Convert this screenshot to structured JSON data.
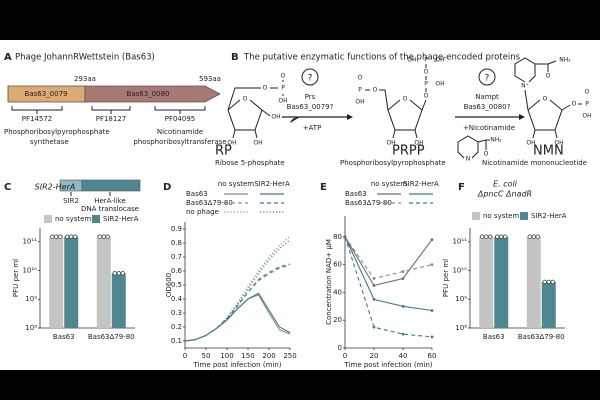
{
  "panel_labels": [
    "A",
    "B",
    "C",
    "D",
    "E",
    "F"
  ],
  "panel_a": {
    "title": "Phage JohannRWettstein (Bas63)",
    "genes": [
      "Bas63_0079",
      "Bas63_0080"
    ],
    "lengths": [
      "293aa",
      "593aa"
    ],
    "domains": [
      "PF14572",
      "PF18127",
      "PF04095"
    ],
    "annotations": [
      [
        "Phosphoribosylpyrophosphate",
        "synthetase"
      ],
      [
        "Nicotinamide",
        "phosphoribosyltransferase"
      ]
    ]
  },
  "panel_b": {
    "title": "The putative enzymatic functions of the phage-encoded proteins",
    "steps": [
      {
        "question": "?",
        "enzyme": "Prs",
        "candidate": "Bas63_0079?",
        "cosubstrate": "+ATP"
      },
      {
        "question": "?",
        "enzyme": "Nampt",
        "candidate": "Bas63_0080?",
        "cosubstrate": "+Nicotinamide"
      }
    ],
    "molecules": [
      {
        "abbr": "RP",
        "name": "Ribose 5-phosphate",
        "atoms": [
          "O",
          "OH",
          "OH",
          "OH",
          "O",
          "P",
          "O",
          "OH"
        ]
      },
      {
        "abbr": "PRPP",
        "name": "Phosphoribosylpyrophosphate",
        "atoms": [
          "O",
          "O",
          "P",
          "OH",
          "O",
          "P",
          "OH",
          "OH",
          "OH",
          "OH",
          "O",
          "P",
          "O",
          "OH"
        ]
      },
      {
        "abbr": "NMN",
        "name": "Nicotinamide mononucleotide",
        "atoms": [
          "O",
          "OH",
          "OH",
          "O",
          "P",
          "O",
          "OH",
          "N⁺",
          "NH₂",
          "O"
        ]
      }
    ],
    "nicotinamide_atoms": [
      "N",
      "NH₂",
      "O"
    ]
  },
  "panel_c": {
    "gene_labels": [
      "SIR2",
      "HerA-like",
      "DNA translocase"
    ]
  },
  "chart_data": [
    {
      "type": "bar",
      "title": "SIR2-HerA",
      "log": true,
      "ylabel": "PFU per ml",
      "categories": [
        "Bas63",
        "Bas63Δ79-80"
      ],
      "series": [
        {
          "name": "no system",
          "color": "#c4c4c4",
          "values": [
            150000000000,
            150000000000
          ]
        },
        {
          "name": "SIR2-HerA",
          "color": "#4f8791",
          "values": [
            150000000000,
            8000000000
          ]
        }
      ],
      "ylim": [
        100000000,
        300000000000
      ],
      "yticks": [
        {
          "value": 100000000,
          "label": "10⁸"
        },
        {
          "value": 1000000000,
          "label": "10⁹"
        },
        {
          "value": 10000000000,
          "label": "10¹⁰"
        },
        {
          "value": 100000000000,
          "label": "10¹¹"
        }
      ]
    },
    {
      "type": "line",
      "ylabel": "OD600",
      "xlabel": "Time post infection (min)",
      "legend_columns": [
        "no system",
        "SIR2-HerA"
      ],
      "legend_rows": [
        "Bas63",
        "Bas63Δ79-80",
        "no phage"
      ],
      "x": [
        0,
        25,
        50,
        75,
        100,
        125,
        150,
        175,
        200,
        225,
        250
      ],
      "series": [
        {
          "color": "#8c8c8c",
          "style": "solid",
          "values": [
            0.1,
            0.11,
            0.14,
            0.19,
            0.25,
            0.33,
            0.4,
            0.43,
            0.3,
            0.18,
            0.15
          ]
        },
        {
          "color": "#3e7c8a",
          "style": "solid",
          "values": [
            0.1,
            0.11,
            0.14,
            0.19,
            0.25,
            0.33,
            0.4,
            0.44,
            0.32,
            0.2,
            0.16
          ]
        },
        {
          "color": "#8c8c8c",
          "style": "dashed",
          "values": [
            0.1,
            0.11,
            0.14,
            0.19,
            0.26,
            0.35,
            0.45,
            0.53,
            0.58,
            0.62,
            0.64
          ]
        },
        {
          "color": "#3e7c8a",
          "style": "dashed",
          "values": [
            0.1,
            0.11,
            0.14,
            0.19,
            0.26,
            0.35,
            0.45,
            0.54,
            0.59,
            0.63,
            0.65
          ]
        },
        {
          "color": "#8c8c8c",
          "style": "dotted",
          "values": [
            0.1,
            0.11,
            0.14,
            0.19,
            0.27,
            0.37,
            0.49,
            0.6,
            0.7,
            0.78,
            0.85
          ]
        },
        {
          "color": "#3e7c8a",
          "style": "dotted",
          "values": [
            0.1,
            0.11,
            0.14,
            0.19,
            0.26,
            0.36,
            0.47,
            0.58,
            0.68,
            0.76,
            0.82
          ]
        }
      ],
      "xlim": [
        0,
        250
      ],
      "xticks": [
        0,
        50,
        100,
        150,
        200,
        250
      ],
      "ylim": [
        0.05,
        0.95
      ],
      "yticks": [
        0.1,
        0.2,
        0.3,
        0.4,
        0.5,
        0.6,
        0.7,
        0.8,
        0.9
      ]
    },
    {
      "type": "line",
      "ylabel": "Concentration NAD+ µM",
      "xlabel": "Time post infection (min)",
      "legend_columns": [
        "no system",
        "SIR2-HerA"
      ],
      "legend_rows": [
        "Bas63",
        "Bas63Δ79-80"
      ],
      "x": [
        0,
        20,
        40,
        60
      ],
      "series": [
        {
          "color": "#6e6e6e",
          "style": "solid",
          "values": [
            80,
            45,
            50,
            78
          ]
        },
        {
          "color": "#3e7c8a",
          "style": "solid",
          "values": [
            80,
            35,
            30,
            27
          ]
        },
        {
          "color": "#8c8c8c",
          "style": "dashed",
          "values": [
            80,
            50,
            55,
            60
          ]
        },
        {
          "color": "#3e7c8a",
          "style": "dashed",
          "values": [
            80,
            15,
            10,
            8
          ]
        }
      ],
      "xlim": [
        0,
        60
      ],
      "xticks": [
        0,
        20,
        40,
        60
      ],
      "ylim": [
        0,
        95
      ],
      "yticks": [
        0,
        20,
        40,
        60,
        80
      ]
    },
    {
      "type": "bar",
      "title": "E. coli",
      "subtitle": "ΔpncC ΔnadR",
      "log": true,
      "ylabel": "PFU per ml",
      "categories": [
        "Bas63",
        "Bas63Δ79-80"
      ],
      "series": [
        {
          "name": "no system",
          "color": "#c4c4c4",
          "values": [
            150000000000,
            150000000000
          ]
        },
        {
          "name": "SIR2-HerA",
          "color": "#4f8791",
          "values": [
            150000000000,
            4000000000
          ]
        }
      ],
      "ylim": [
        100000000,
        300000000000
      ],
      "yticks": [
        {
          "value": 100000000,
          "label": "10⁸"
        },
        {
          "value": 1000000000,
          "label": "10⁹"
        },
        {
          "value": 10000000000,
          "label": "10¹⁰"
        },
        {
          "value": 100000000000,
          "label": "10¹¹"
        }
      ]
    }
  ]
}
